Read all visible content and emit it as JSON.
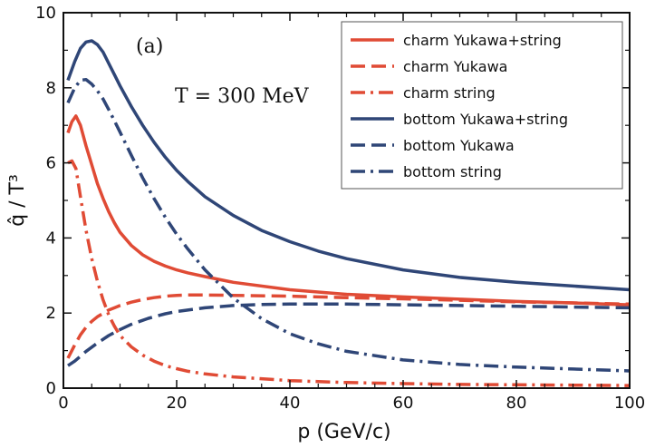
{
  "chart_data": {
    "type": "line",
    "title": "",
    "panel_label": "(a)",
    "annotation": "T = 300 MeV",
    "xlabel": "p (GeV/c)",
    "ylabel": "q̂ / T³",
    "xlim": [
      0,
      100
    ],
    "ylim": [
      0,
      10
    ],
    "xticks": [
      0,
      20,
      40,
      60,
      80,
      100
    ],
    "yticks": [
      0,
      2,
      4,
      6,
      8,
      10
    ],
    "legend_position": "top-right",
    "colors": {
      "charm": "#e04b35",
      "bottom": "#2f4677"
    },
    "series": [
      {
        "name": "charm Yukawa+string",
        "color": "#e04b35",
        "dash": "solid",
        "x": [
          0.8,
          1.5,
          2.2,
          3.0,
          4.0,
          5.0,
          6.0,
          7.0,
          8.0,
          9.0,
          10.0,
          12.0,
          14.0,
          16.0,
          18.0,
          20.0,
          22.0,
          25.0,
          30.0,
          40.0,
          50.0,
          60.0,
          70.0,
          80.0,
          90.0,
          100.0
        ],
        "y": [
          6.8,
          7.1,
          7.25,
          7.0,
          6.45,
          5.95,
          5.45,
          5.05,
          4.7,
          4.4,
          4.15,
          3.8,
          3.55,
          3.38,
          3.25,
          3.15,
          3.07,
          2.97,
          2.82,
          2.62,
          2.5,
          2.43,
          2.37,
          2.31,
          2.27,
          2.22
        ]
      },
      {
        "name": "charm Yukawa",
        "color": "#e04b35",
        "dash": "dashed",
        "x": [
          0.8,
          2.0,
          3.0,
          4.0,
          5.0,
          6.0,
          8.0,
          10.0,
          12.0,
          14.0,
          16.0,
          18.0,
          20.0,
          22.0,
          25.0,
          30.0,
          40.0,
          50.0,
          60.0,
          70.0,
          80.0,
          90.0,
          100.0
        ],
        "y": [
          0.8,
          1.15,
          1.42,
          1.62,
          1.78,
          1.9,
          2.08,
          2.2,
          2.29,
          2.36,
          2.41,
          2.45,
          2.47,
          2.48,
          2.48,
          2.47,
          2.45,
          2.41,
          2.38,
          2.34,
          2.3,
          2.27,
          2.24
        ]
      },
      {
        "name": "charm string",
        "color": "#e04b35",
        "dash": "dashdot",
        "x": [
          0.8,
          1.5,
          2.2,
          3.0,
          4.0,
          5.0,
          6.0,
          7.0,
          8.0,
          9.0,
          10.0,
          12.0,
          14.0,
          16.0,
          18.0,
          20.0,
          22.0,
          25.0,
          30.0,
          40.0,
          50.0,
          60.0,
          70.0,
          80.0,
          90.0,
          100.0
        ],
        "y": [
          6.0,
          6.05,
          5.85,
          5.1,
          4.2,
          3.45,
          2.85,
          2.35,
          1.95,
          1.65,
          1.4,
          1.1,
          0.88,
          0.72,
          0.6,
          0.52,
          0.45,
          0.38,
          0.3,
          0.2,
          0.15,
          0.12,
          0.1,
          0.09,
          0.08,
          0.07
        ]
      },
      {
        "name": "bottom Yukawa+string",
        "color": "#2f4677",
        "dash": "solid",
        "x": [
          0.8,
          2.0,
          3.0,
          4.0,
          5.0,
          6.0,
          7.0,
          8.0,
          9.0,
          10.0,
          12.0,
          14.0,
          16.0,
          18.0,
          20.0,
          22.0,
          25.0,
          30.0,
          35.0,
          40.0,
          45.0,
          50.0,
          60.0,
          70.0,
          80.0,
          90.0,
          100.0
        ],
        "y": [
          8.2,
          8.7,
          9.05,
          9.22,
          9.25,
          9.15,
          8.95,
          8.65,
          8.35,
          8.05,
          7.5,
          7.0,
          6.55,
          6.15,
          5.8,
          5.5,
          5.1,
          4.6,
          4.2,
          3.9,
          3.65,
          3.45,
          3.15,
          2.95,
          2.82,
          2.72,
          2.62
        ]
      },
      {
        "name": "bottom Yukawa",
        "color": "#2f4677",
        "dash": "dashed",
        "x": [
          0.8,
          2.0,
          3.0,
          4.0,
          6.0,
          8.0,
          10.0,
          12.0,
          15.0,
          18.0,
          20.0,
          25.0,
          30.0,
          35.0,
          40.0,
          50.0,
          60.0,
          70.0,
          80.0,
          90.0,
          100.0
        ],
        "y": [
          0.6,
          0.72,
          0.85,
          0.98,
          1.2,
          1.4,
          1.56,
          1.7,
          1.86,
          1.98,
          2.04,
          2.14,
          2.2,
          2.23,
          2.24,
          2.24,
          2.22,
          2.2,
          2.18,
          2.16,
          2.14
        ]
      },
      {
        "name": "bottom string",
        "color": "#2f4677",
        "dash": "dashdot",
        "x": [
          0.8,
          2.0,
          3.0,
          4.0,
          5.0,
          6.0,
          7.0,
          8.0,
          9.0,
          10.0,
          12.0,
          14.0,
          16.0,
          18.0,
          20.0,
          22.0,
          25.0,
          30.0,
          35.0,
          40.0,
          45.0,
          50.0,
          60.0,
          70.0,
          80.0,
          90.0,
          100.0
        ],
        "y": [
          7.6,
          8.0,
          8.2,
          8.22,
          8.1,
          7.92,
          7.7,
          7.42,
          7.12,
          6.82,
          6.2,
          5.6,
          5.05,
          4.55,
          4.1,
          3.7,
          3.15,
          2.4,
          1.85,
          1.45,
          1.18,
          0.98,
          0.75,
          0.63,
          0.56,
          0.51,
          0.46
        ]
      }
    ]
  }
}
